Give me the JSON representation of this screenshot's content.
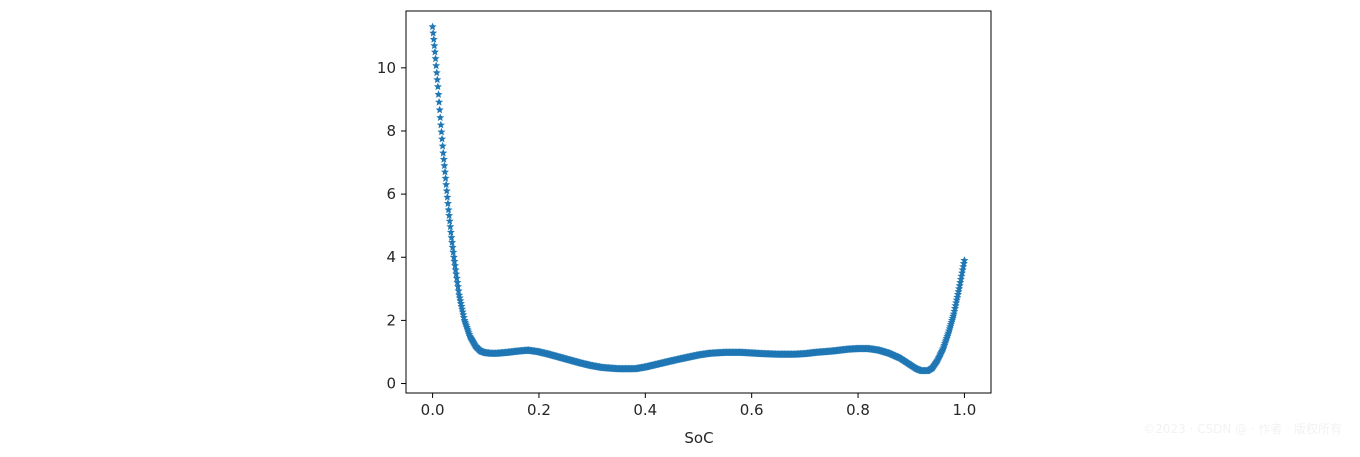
{
  "chart_data": {
    "type": "scatter",
    "title": "",
    "xlabel": "SoC",
    "ylabel": "",
    "xlim": [
      -0.05,
      1.05
    ],
    "ylim": [
      -0.3,
      11.8
    ],
    "xticks": [
      0.0,
      0.2,
      0.4,
      0.6,
      0.8,
      1.0
    ],
    "xtick_labels": [
      "0.0",
      "0.2",
      "0.4",
      "0.6",
      "0.8",
      "1.0"
    ],
    "yticks": [
      0,
      2,
      4,
      6,
      8,
      10
    ],
    "ytick_labels": [
      "0",
      "2",
      "4",
      "6",
      "8",
      "10"
    ],
    "grid": false,
    "marker": "*",
    "color": "#1f77b4",
    "series": [
      {
        "x": [
          0.0,
          0.005,
          0.01,
          0.015,
          0.02,
          0.025,
          0.03,
          0.035,
          0.04,
          0.045,
          0.05,
          0.06,
          0.07,
          0.08,
          0.09,
          0.1,
          0.11,
          0.12,
          0.14,
          0.16,
          0.18,
          0.2,
          0.22,
          0.25,
          0.28,
          0.3,
          0.32,
          0.35,
          0.38,
          0.4,
          0.42,
          0.45,
          0.48,
          0.5,
          0.52,
          0.55,
          0.58,
          0.6,
          0.62,
          0.65,
          0.68,
          0.7,
          0.72,
          0.75,
          0.78,
          0.8,
          0.82,
          0.84,
          0.86,
          0.88,
          0.9,
          0.91,
          0.92,
          0.93,
          0.94,
          0.95,
          0.96,
          0.97,
          0.98,
          0.99,
          1.0
        ],
        "y": [
          11.3,
          10.4,
          9.4,
          8.3,
          7.3,
          6.4,
          5.5,
          4.7,
          4.0,
          3.4,
          2.8,
          2.0,
          1.5,
          1.2,
          1.03,
          0.97,
          0.95,
          0.95,
          0.98,
          1.02,
          1.05,
          1.0,
          0.92,
          0.78,
          0.64,
          0.56,
          0.5,
          0.46,
          0.46,
          0.52,
          0.6,
          0.72,
          0.83,
          0.9,
          0.95,
          0.98,
          0.98,
          0.96,
          0.94,
          0.92,
          0.92,
          0.94,
          0.98,
          1.02,
          1.08,
          1.1,
          1.1,
          1.05,
          0.95,
          0.8,
          0.58,
          0.47,
          0.4,
          0.4,
          0.5,
          0.75,
          1.1,
          1.6,
          2.2,
          3.0,
          3.9
        ]
      }
    ]
  },
  "watermark": "©2023 · CSDN @ · 作者 · 版权所有"
}
